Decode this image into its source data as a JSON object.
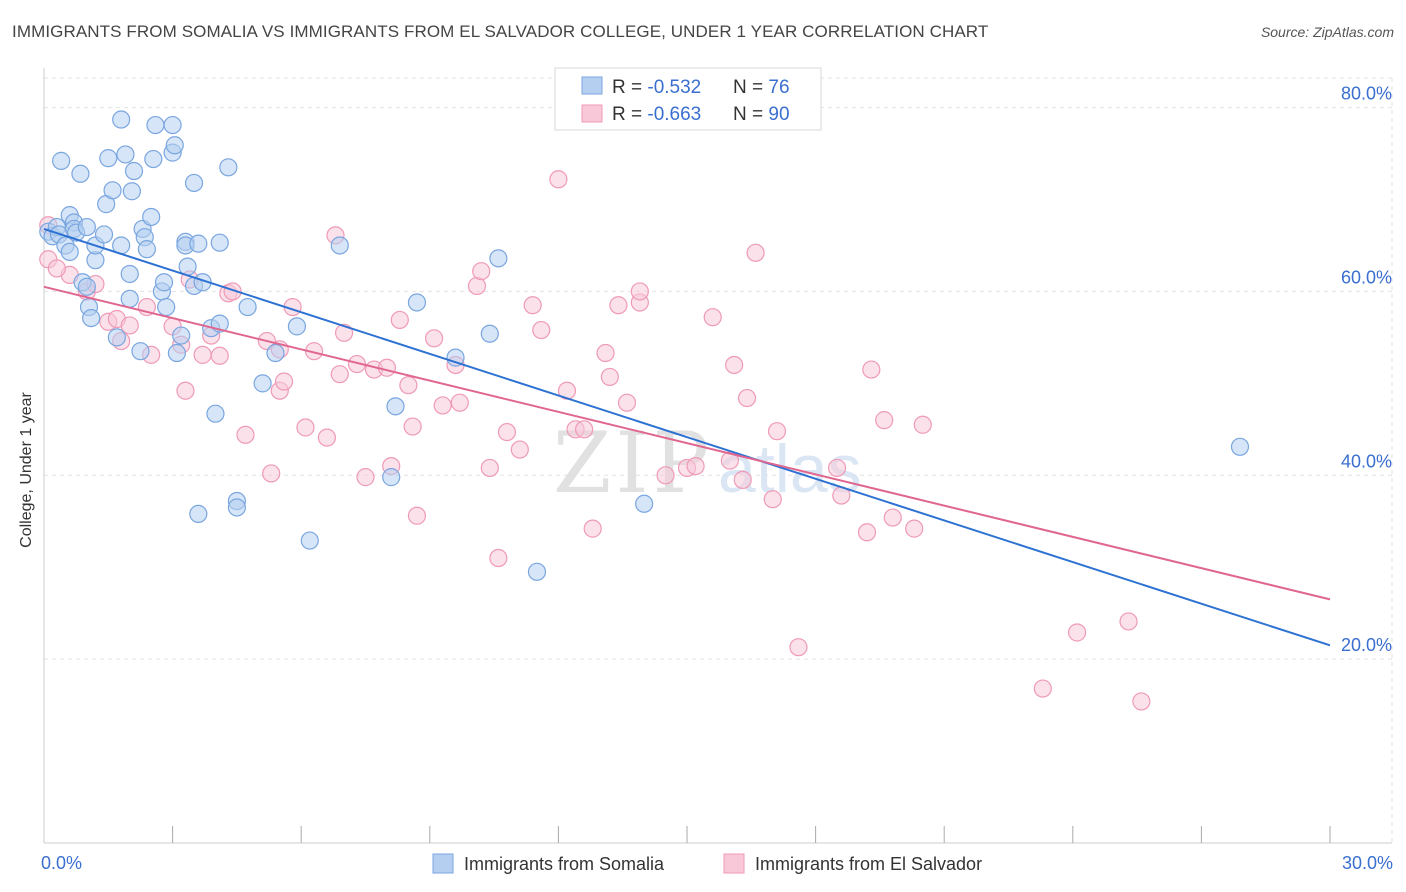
{
  "title": "IMMIGRANTS FROM SOMALIA VS IMMIGRANTS FROM EL SALVADOR COLLEGE, UNDER 1 YEAR CORRELATION CHART",
  "source": "Source: ZipAtlas.com",
  "colors": {
    "somalia": "#7aa6e0",
    "somalia_fill": "#b4cff0",
    "somalia_line": "#2d72d2",
    "elsalvador": "#ef9ab6",
    "elsalvador_fill": "#f8c8d8",
    "elsalvador_line": "#e0668f",
    "value_text": "#3a6fd0"
  },
  "legend_top": [
    {
      "r_label": "R = ",
      "r_value": "-0.532",
      "n_label": "N = ",
      "n_value": "76"
    },
    {
      "r_label": "R = ",
      "r_value": "-0.663",
      "n_label": "N = ",
      "n_value": "90"
    }
  ],
  "watermark": {
    "zip": "ZIP",
    "atlas": "atlas"
  },
  "chart_data": {
    "type": "scatter",
    "title": "IMMIGRANTS FROM SOMALIA VS IMMIGRANTS FROM EL SALVADOR COLLEGE, UNDER 1 YEAR CORRELATION CHART",
    "xlabel": "",
    "ylabel": "College, Under 1 year",
    "xlim": [
      0,
      30
    ],
    "ylim": [
      0,
      83
    ],
    "x_tick_labels": [
      {
        "value": 0,
        "label": "0.0%"
      },
      {
        "value": 30,
        "label": "30.0%"
      }
    ],
    "x_minor_ticks": [
      3,
      6,
      9,
      12,
      15,
      18,
      21,
      24,
      27
    ],
    "y_ticks": [
      {
        "value": 20,
        "label": "20.0%"
      },
      {
        "value": 40,
        "label": "40.0%"
      },
      {
        "value": 60,
        "label": "60.0%"
      },
      {
        "value": 80,
        "label": "80.0%"
      }
    ],
    "series": [
      {
        "name": "Immigrants from Somalia",
        "r": -0.532,
        "n": 76,
        "trend": {
          "x0": 0,
          "y0": 66.8,
          "x1": 30,
          "y1": 21.5
        },
        "points": [
          [
            0.1,
            66.5
          ],
          [
            0.2,
            66
          ],
          [
            0.3,
            67
          ],
          [
            0.35,
            66.2
          ],
          [
            0.5,
            65
          ],
          [
            0.6,
            68.3
          ],
          [
            0.6,
            64.3
          ],
          [
            0.7,
            67.5
          ],
          [
            0.7,
            66.8
          ],
          [
            0.75,
            66.4
          ],
          [
            0.4,
            74.2
          ],
          [
            0.85,
            72.8
          ],
          [
            0.9,
            61
          ],
          [
            1.0,
            60.5
          ],
          [
            1.0,
            67
          ],
          [
            1.05,
            58.3
          ],
          [
            1.1,
            57.1
          ],
          [
            1.2,
            63.4
          ],
          [
            1.2,
            65
          ],
          [
            1.4,
            66.2
          ],
          [
            1.45,
            69.5
          ],
          [
            1.5,
            74.5
          ],
          [
            1.6,
            71
          ],
          [
            1.7,
            55
          ],
          [
            1.8,
            65
          ],
          [
            1.8,
            78.7
          ],
          [
            1.9,
            74.9
          ],
          [
            2.0,
            61.9
          ],
          [
            2.0,
            59.2
          ],
          [
            2.05,
            70.9
          ],
          [
            2.1,
            73.1
          ],
          [
            2.25,
            53.5
          ],
          [
            2.3,
            66.8
          ],
          [
            2.35,
            65.9
          ],
          [
            2.4,
            64.6
          ],
          [
            2.5,
            68.1
          ],
          [
            2.55,
            74.4
          ],
          [
            2.6,
            78.1
          ],
          [
            2.75,
            60
          ],
          [
            2.8,
            61
          ],
          [
            2.85,
            58.3
          ],
          [
            3.0,
            75.1
          ],
          [
            3.0,
            78.1
          ],
          [
            3.05,
            75.9
          ],
          [
            3.1,
            53.3
          ],
          [
            3.2,
            55.2
          ],
          [
            3.3,
            65.4
          ],
          [
            3.3,
            65
          ],
          [
            3.35,
            62.7
          ],
          [
            3.5,
            60.6
          ],
          [
            3.5,
            71.8
          ],
          [
            3.6,
            65.2
          ],
          [
            3.7,
            61
          ],
          [
            3.9,
            56
          ],
          [
            4.0,
            46.7
          ],
          [
            4.1,
            65.3
          ],
          [
            4.1,
            56.5
          ],
          [
            4.3,
            73.5
          ],
          [
            4.5,
            37.2
          ],
          [
            4.5,
            36.5
          ],
          [
            4.75,
            58.3
          ],
          [
            5.1,
            50
          ],
          [
            5.4,
            53.3
          ],
          [
            5.9,
            56.2
          ],
          [
            6.2,
            32.9
          ],
          [
            6.9,
            65
          ],
          [
            8.1,
            39.8
          ],
          [
            8.2,
            47.5
          ],
          [
            8.7,
            58.8
          ],
          [
            9.6,
            52.8
          ],
          [
            10.4,
            55.4
          ],
          [
            10.6,
            63.6
          ],
          [
            11.5,
            29.5
          ],
          [
            3.6,
            35.8
          ],
          [
            14.0,
            36.9
          ],
          [
            27.9,
            43.1
          ]
        ]
      },
      {
        "name": "Immigrants from El Salvador",
        "r": -0.663,
        "n": 90,
        "trend": {
          "x0": 0,
          "y0": 60.5,
          "x1": 30,
          "y1": 26.5
        },
        "points": [
          [
            0.1,
            67.2
          ],
          [
            0.1,
            63.5
          ],
          [
            0.6,
            61.8
          ],
          [
            1.0,
            60
          ],
          [
            1.2,
            60.8
          ],
          [
            1.5,
            56.7
          ],
          [
            1.7,
            57
          ],
          [
            1.8,
            54.6
          ],
          [
            2.0,
            56.3
          ],
          [
            2.4,
            58.3
          ],
          [
            2.5,
            53.1
          ],
          [
            3.0,
            56.2
          ],
          [
            3.2,
            54.2
          ],
          [
            3.3,
            49.2
          ],
          [
            3.4,
            61.3
          ],
          [
            3.7,
            53.1
          ],
          [
            3.9,
            55.2
          ],
          [
            4.1,
            53
          ],
          [
            4.3,
            59.8
          ],
          [
            4.4,
            60
          ],
          [
            4.7,
            44.4
          ],
          [
            5.2,
            54.6
          ],
          [
            5.3,
            40.2
          ],
          [
            5.5,
            53.7
          ],
          [
            5.5,
            49.2
          ],
          [
            5.6,
            50.2
          ],
          [
            5.8,
            58.3
          ],
          [
            6.1,
            45.2
          ],
          [
            6.3,
            53.5
          ],
          [
            6.6,
            44.1
          ],
          [
            6.8,
            66.1
          ],
          [
            6.9,
            51
          ],
          [
            7.0,
            55.5
          ],
          [
            7.3,
            52.1
          ],
          [
            7.5,
            39.8
          ],
          [
            7.7,
            51.5
          ],
          [
            8.0,
            51.7
          ],
          [
            8.1,
            41
          ],
          [
            8.3,
            56.9
          ],
          [
            8.5,
            49.8
          ],
          [
            8.6,
            45.3
          ],
          [
            8.7,
            35.6
          ],
          [
            9.1,
            54.9
          ],
          [
            9.3,
            47.6
          ],
          [
            9.6,
            52
          ],
          [
            9.7,
            47.9
          ],
          [
            10.1,
            60.6
          ],
          [
            10.2,
            62.2
          ],
          [
            10.4,
            40.8
          ],
          [
            10.6,
            31
          ],
          [
            10.8,
            44.7
          ],
          [
            11.1,
            42.8
          ],
          [
            11.4,
            58.5
          ],
          [
            11.6,
            55.8
          ],
          [
            12.0,
            72.2
          ],
          [
            12.2,
            49.2
          ],
          [
            12.4,
            45
          ],
          [
            12.6,
            45
          ],
          [
            12.8,
            34.2
          ],
          [
            13.1,
            53.3
          ],
          [
            13.2,
            50.7
          ],
          [
            13.4,
            58.5
          ],
          [
            13.6,
            47.9
          ],
          [
            13.9,
            58.8
          ],
          [
            13.9,
            60
          ],
          [
            14.5,
            40
          ],
          [
            15.0,
            40.8
          ],
          [
            15.2,
            41
          ],
          [
            15.6,
            57.2
          ],
          [
            16.0,
            41.6
          ],
          [
            16.1,
            52
          ],
          [
            16.3,
            39.5
          ],
          [
            16.4,
            48.4
          ],
          [
            16.6,
            64.2
          ],
          [
            17.0,
            37.4
          ],
          [
            17.1,
            44.8
          ],
          [
            17.6,
            21.3
          ],
          [
            18.5,
            40.8
          ],
          [
            18.6,
            37.8
          ],
          [
            19.2,
            33.8
          ],
          [
            19.3,
            51.5
          ],
          [
            19.6,
            46
          ],
          [
            19.8,
            35.4
          ],
          [
            20.3,
            34.2
          ],
          [
            20.5,
            45.5
          ],
          [
            23.3,
            16.8
          ],
          [
            24.1,
            22.9
          ],
          [
            25.3,
            24.1
          ],
          [
            25.6,
            15.4
          ],
          [
            0.3,
            62.5
          ]
        ]
      }
    ]
  },
  "bottom_legend": [
    {
      "label": "Immigrants from Somalia"
    },
    {
      "label": "Immigrants from El Salvador"
    }
  ]
}
